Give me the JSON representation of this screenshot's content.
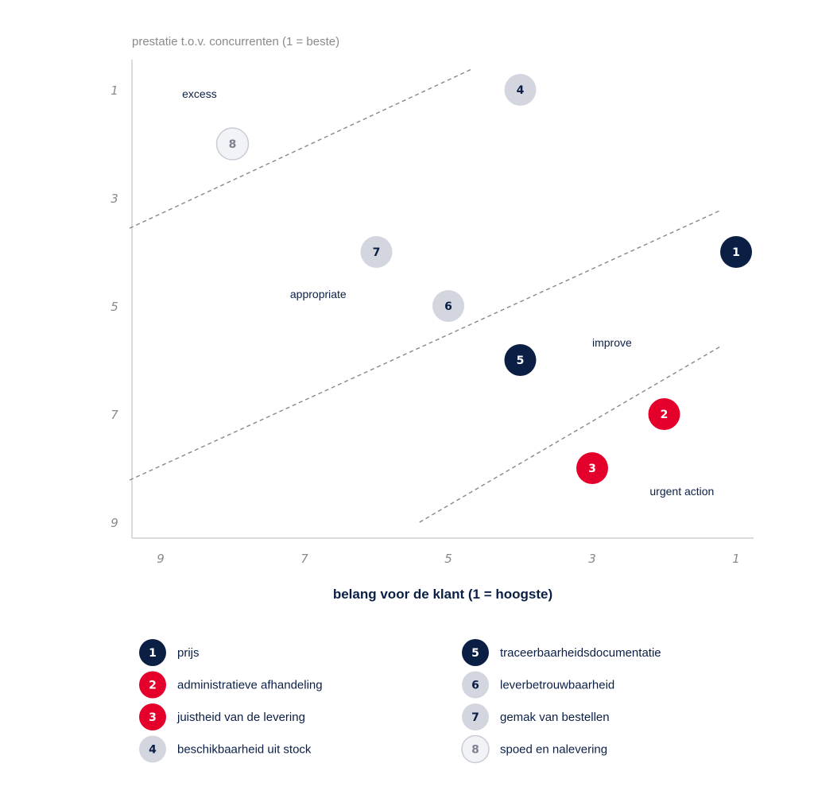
{
  "chart_data": {
    "type": "scatter",
    "xlabel": "belang voor de klant (1 = hoogste)",
    "ylabel": "prestatie t.o.v. concurrenten (1 = beste)",
    "x_ticks": [
      "9",
      "7",
      "5",
      "3",
      "1"
    ],
    "y_ticks": [
      "1",
      "3",
      "5",
      "7",
      "9"
    ],
    "x_axis": {
      "reversed": true,
      "ticks": [
        9,
        7,
        5,
        3,
        1
      ]
    },
    "y_axis": {
      "reversed": true,
      "ticks": [
        1,
        3,
        5,
        7,
        9
      ]
    },
    "zones": [
      {
        "label": "excess",
        "x": 8.7,
        "y": 1.15
      },
      {
        "label": "appropriate",
        "x": 7.2,
        "y": 4.85
      },
      {
        "label": "improve",
        "x": 3.0,
        "y": 5.75
      },
      {
        "label": "urgent action",
        "x": 2.2,
        "y": 8.5
      }
    ],
    "boundaries": [
      {
        "x1": 9.43,
        "y1": 3.56,
        "x2": 4.68,
        "y2": 0.62
      },
      {
        "x1": 9.43,
        "y1": 8.22,
        "x2": 1.2,
        "y2": 3.22
      },
      {
        "x1": 5.4,
        "y1": 9.0,
        "x2": 1.22,
        "y2": 5.75
      }
    ],
    "points": [
      {
        "id": "1",
        "x": 1,
        "y": 4,
        "style": "navy"
      },
      {
        "id": "2",
        "x": 2,
        "y": 7,
        "style": "red"
      },
      {
        "id": "3",
        "x": 3,
        "y": 8,
        "style": "red"
      },
      {
        "id": "4",
        "x": 4,
        "y": 1,
        "style": "gray"
      },
      {
        "id": "5",
        "x": 4,
        "y": 6,
        "style": "navy"
      },
      {
        "id": "6",
        "x": 5,
        "y": 5,
        "style": "gray"
      },
      {
        "id": "7",
        "x": 6,
        "y": 4,
        "style": "gray"
      },
      {
        "id": "8",
        "x": 8,
        "y": 2,
        "style": "light"
      }
    ],
    "legend": [
      {
        "id": "1",
        "label": "prijs",
        "style": "navy"
      },
      {
        "id": "2",
        "label": "administratieve afhandeling",
        "style": "red"
      },
      {
        "id": "3",
        "label": "juistheid van de levering",
        "style": "red"
      },
      {
        "id": "4",
        "label": "beschikbaarheid uit stock",
        "style": "gray"
      },
      {
        "id": "5",
        "label": "traceerbaarheidsdocumentatie",
        "style": "navy"
      },
      {
        "id": "6",
        "label": "leverbetrouwbaarheid",
        "style": "gray"
      },
      {
        "id": "7",
        "label": "gemak van bestellen",
        "style": "gray"
      },
      {
        "id": "8",
        "label": "spoed en nalevering",
        "style": "light"
      }
    ],
    "colors": {
      "navy": {
        "fill": "#0b1f45",
        "text": "#ffffff",
        "stroke": "none"
      },
      "red": {
        "fill": "#e4002b",
        "text": "#ffffff",
        "stroke": "none"
      },
      "gray": {
        "fill": "#d3d6de",
        "text": "#0b1f45",
        "stroke": "none"
      },
      "light": {
        "fill": "#f2f3f6",
        "text": "#7d8290",
        "stroke": "#c9ccd4"
      },
      "axis": "#cfcfcf",
      "boundary": "#888888"
    }
  }
}
